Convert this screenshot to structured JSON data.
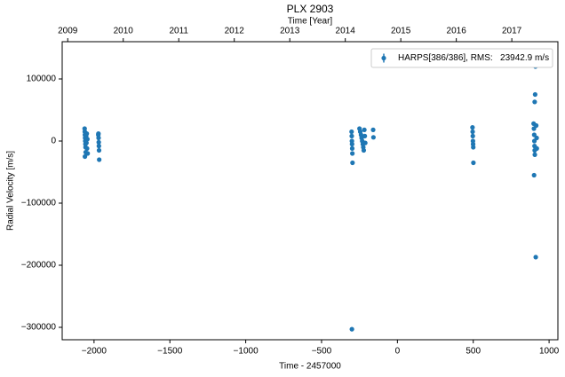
{
  "chart_data": {
    "type": "scatter",
    "title": "PLX 2903",
    "x2label": "Time [Year]",
    "xlabel": "Time - 2457000",
    "ylabel": "Radial Velocity [m/s]",
    "xlim": [
      -2210,
      1058
    ],
    "xticks": [
      {
        "value": -2000,
        "label": "−2000"
      },
      {
        "value": -1500,
        "label": "−1500"
      },
      {
        "value": -1000,
        "label": "−1000"
      },
      {
        "value": -500,
        "label": "−500"
      },
      0,
      500,
      1000
    ],
    "x2lim": [
      2008.9,
      2017.83
    ],
    "x2ticks": [
      2009,
      2010,
      2011,
      2012,
      2013,
      2014,
      2015,
      2016,
      2017
    ],
    "ylim": [
      -320000,
      160000
    ],
    "yticks": [
      {
        "value": -300000,
        "label": "−300000"
      },
      {
        "value": -200000,
        "label": "−200000"
      },
      {
        "value": -100000,
        "label": "−100000"
      },
      0,
      100000
    ],
    "legend": "upper right",
    "series": [
      {
        "name": "HARPS[386/386], RMS:   23942.9 m/s",
        "color": "#1f77b4",
        "x": [
          -2062,
          -2061,
          -2060,
          -2059,
          -2058,
          -2057,
          -2056,
          -2060,
          -2055,
          -2052,
          -2050,
          -2048,
          -2046,
          -2044,
          -2042,
          -1972,
          -1970,
          -1969,
          -1968,
          -1967,
          -1966,
          -1971,
          -302,
          -301,
          -300,
          -299,
          -298,
          -297,
          -296,
          -300,
          -250,
          -245,
          -240,
          -236,
          -232,
          -228,
          -225,
          -222,
          -218,
          -215,
          -212,
          -160,
          -158,
          495,
          496,
          497,
          498,
          499,
          500,
          501,
          898,
          900,
          902,
          903,
          904,
          905,
          906,
          901,
          905,
          908,
          910,
          912,
          915,
          918,
          919
        ],
        "values": [
          20000,
          15000,
          10000,
          5000,
          0,
          -5000,
          -10000,
          -25000,
          -18000,
          8000,
          -3000,
          12000,
          -12000,
          3000,
          -20000,
          10000,
          5000,
          -2000,
          -8000,
          -15000,
          -30000,
          12000,
          15000,
          8000,
          0,
          -5000,
          -12000,
          -20000,
          -35000,
          -303000,
          20000,
          15000,
          10000,
          5000,
          0,
          -5000,
          -10000,
          -15000,
          18000,
          8000,
          -3000,
          18000,
          6000,
          22000,
          15000,
          8000,
          0,
          -5000,
          -10000,
          -35000,
          28000,
          20000,
          10000,
          0,
          -8000,
          -15000,
          -22000,
          -55000,
          63000,
          75000,
          120000,
          -187000,
          25000,
          5000,
          -12000
        ]
      }
    ]
  }
}
